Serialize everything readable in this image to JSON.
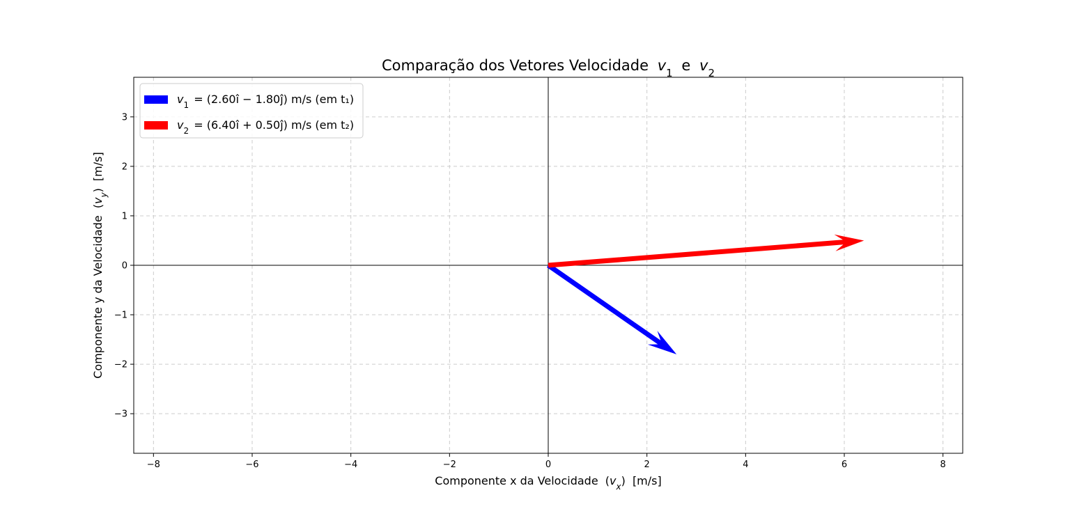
{
  "chart_data": {
    "type": "vector",
    "title": "Comparação dos Vetores Velocidade",
    "title_vectors": [
      "v",
      "1",
      "e",
      "v",
      "2"
    ],
    "xlabel": "Componente x da Velocidade",
    "xlabel_symbol": "v",
    "xlabel_sub": "x",
    "xlabel_unit": "[m/s]",
    "ylabel": "Componente y da Velocidade",
    "ylabel_symbol": "v",
    "ylabel_sub": "y",
    "ylabel_unit": "[m/s]",
    "xlim": [
      -8.4,
      8.4
    ],
    "ylim": [
      -3.8,
      3.8
    ],
    "xticks": [
      -8,
      -6,
      -4,
      -2,
      0,
      2,
      4,
      6,
      8
    ],
    "yticks": [
      -3,
      -2,
      -1,
      0,
      1,
      2,
      3
    ],
    "xtick_labels": [
      "−8",
      "−6",
      "−4",
      "−2",
      "0",
      "2",
      "4",
      "6",
      "8"
    ],
    "ytick_labels": [
      "−3",
      "−2",
      "−1",
      "0",
      "1",
      "2",
      "3"
    ],
    "grid": true,
    "legend_position": "top-left",
    "series": [
      {
        "name": "v1",
        "label_prefix": "v",
        "label_sub": "1",
        "label_expr": "= (2.60î − 1.80ĵ) m/s  (em t₁)",
        "x": 0,
        "y": 0,
        "u": 2.6,
        "v": -1.8,
        "color": "#0000ff"
      },
      {
        "name": "v2",
        "label_prefix": "v",
        "label_sub": "2",
        "label_expr": "= (6.40î + 0.50ĵ) m/s  (em t₂)",
        "x": 0,
        "y": 0,
        "u": 6.4,
        "v": 0.5,
        "color": "#ff0000"
      }
    ]
  }
}
